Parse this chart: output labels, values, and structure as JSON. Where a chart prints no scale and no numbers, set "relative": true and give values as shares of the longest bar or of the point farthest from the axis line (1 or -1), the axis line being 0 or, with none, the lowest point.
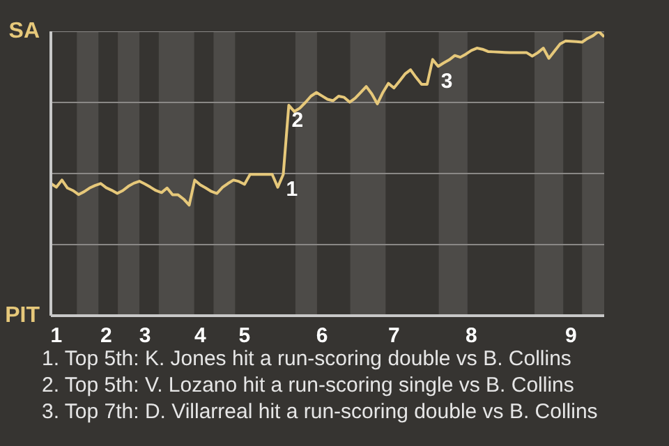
{
  "chart_data": {
    "type": "line",
    "relative": true,
    "marker": "none",
    "line_style": "solid",
    "categories": [
      null,
      "1",
      null,
      null,
      null,
      null,
      null,
      null,
      null,
      null,
      "2",
      null,
      null,
      null,
      null,
      null,
      null,
      "3",
      null,
      null,
      null,
      null,
      null,
      null,
      null,
      null,
      null,
      "4",
      null,
      null,
      null,
      null,
      null,
      null,
      null,
      "5",
      null,
      null,
      null,
      null,
      null,
      null,
      null,
      null,
      null,
      null,
      null,
      null,
      null,
      "6",
      null,
      null,
      null,
      null,
      null,
      null,
      null,
      null,
      null,
      null,
      null,
      null,
      "7",
      null,
      null,
      null,
      null,
      null,
      null,
      null,
      null,
      null,
      null,
      null,
      null,
      null,
      "8",
      null,
      null,
      null,
      null,
      null,
      null,
      null,
      null,
      null,
      null,
      null,
      null,
      null,
      null,
      null,
      null,
      null,
      "9",
      null,
      null,
      null,
      null,
      null,
      null
    ],
    "series": [
      {
        "color": "#e6c87a",
        "values": [
          0.465,
          0.452,
          0.477,
          0.449,
          0.44,
          0.426,
          0.436,
          0.449,
          0.458,
          0.465,
          0.45,
          0.441,
          0.43,
          0.44,
          0.455,
          0.466,
          0.473,
          0.463,
          0.452,
          0.44,
          0.433,
          0.449,
          0.425,
          0.425,
          0.41,
          0.389,
          0.477,
          0.46,
          0.449,
          0.437,
          0.43,
          0.451,
          0.465,
          0.477,
          0.472,
          0.462,
          0.497,
          0.497,
          0.497,
          0.497,
          0.497,
          0.452,
          0.497,
          0.74,
          0.718,
          0.73,
          0.75,
          0.772,
          0.785,
          0.773,
          0.761,
          0.756,
          0.772,
          0.768,
          0.751,
          0.765,
          0.785,
          0.806,
          0.78,
          0.745,
          0.785,
          0.817,
          0.801,
          0.825,
          0.85,
          0.865,
          0.838,
          0.814,
          0.814,
          0.901,
          0.877,
          0.889,
          0.9,
          0.915,
          0.909,
          0.92,
          0.933,
          0.941,
          0.937,
          0.929,
          0.928,
          0.927,
          0.926,
          0.925,
          0.925,
          0.925,
          0.925,
          0.913,
          0.925,
          0.941,
          0.905,
          0.93,
          0.955,
          0.966,
          0.965,
          0.964,
          0.962,
          0.975,
          0.985,
          1,
          0.981
        ]
      }
    ],
    "ref_lines": [
      {
        "axis": "y",
        "value": 0.25,
        "color": "#8a8886"
      },
      {
        "axis": "y",
        "value": 0.5,
        "color": "#8a8886"
      },
      {
        "axis": "y",
        "value": 0.75,
        "color": "#8a8886"
      },
      {
        "axis": "y",
        "value": 1,
        "color": "#8a8886"
      }
    ],
    "annotations": [
      "SA",
      "PIT",
      {
        "text": "1",
        "y": 0.497
      },
      {
        "text": "2",
        "y": 0.74
      },
      {
        "text": "3",
        "y": 0.877
      },
      "1. Top 5th: K. Jones hit a run-scoring double vs B. Collins",
      "2. Top 5th: V. Lozano hit a run-scoring single vs B. Collins",
      "3. Top 7th: D. Villarreal hit a run-scoring double vs B. Collins"
    ]
  }
}
